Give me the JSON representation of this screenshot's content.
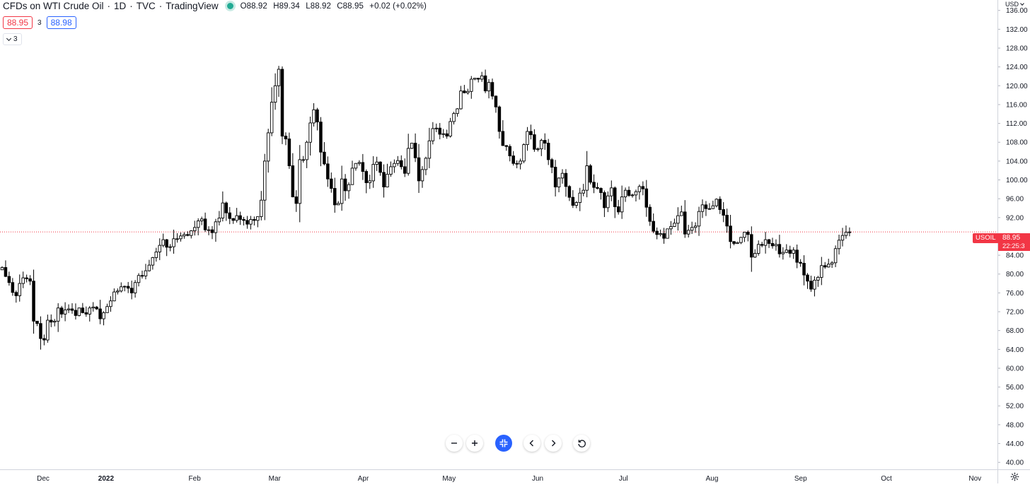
{
  "legend": {
    "symbol": "CFDs on WTI Crude Oil",
    "interval": "1D",
    "exchange": "TVC",
    "source": "TradingView",
    "separator": "·",
    "open": "O88.92",
    "high": "H89.34",
    "low": "L88.92",
    "close": "C88.95",
    "change": "+0.02 (+0.02%)"
  },
  "trade": {
    "sell": "88.95",
    "spread": "3",
    "buy": "88.98"
  },
  "indicators": {
    "count": "3"
  },
  "price_axis": {
    "currency": "USD"
  },
  "last_price": {
    "symbol": "USOIL",
    "value": "88.95",
    "countdown": "22:25:3"
  },
  "colors": {
    "up_body": "#ffffff",
    "down_body": "#000000",
    "wick": "#000000",
    "last_price": "#f23645",
    "buy": "#2962ff",
    "live_dot": "#22ab94"
  },
  "icons": {
    "zoom_out": "minus-icon",
    "zoom_in": "plus-icon",
    "reset_scale": "expand-arrows-icon",
    "scroll_left": "chevron-left-icon",
    "scroll_right": "chevron-right-icon",
    "reset_chart": "rotate-ccw-icon",
    "settings": "gear-icon"
  },
  "chart_data": {
    "type": "candlestick",
    "ylim": [
      38,
      140
    ],
    "y_ticks": [
      "136.00",
      "132.00",
      "128.00",
      "124.00",
      "120.00",
      "116.00",
      "112.00",
      "108.00",
      "104.00",
      "100.00",
      "96.00",
      "92.00",
      "88.00",
      "84.00",
      "80.00",
      "76.00",
      "72.00",
      "68.00",
      "64.00",
      "60.00",
      "56.00",
      "52.00",
      "48.00",
      "44.00",
      "40.00"
    ],
    "x_ticks": [
      "Dec",
      "2022",
      "Feb",
      "Mar",
      "Apr",
      "May",
      "Jun",
      "Jul",
      "Aug",
      "Sep",
      "Oct",
      "Nov"
    ],
    "x_tick_days": [
      22,
      44,
      75,
      103,
      134,
      164,
      195,
      225,
      256,
      287,
      317,
      348
    ],
    "x_range_days": [
      10,
      352
    ],
    "grid": false,
    "last_price_line": 88.95,
    "closes": [
      81.4,
      79.5,
      78.2,
      76.1,
      75.4,
      78.0,
      79.2,
      79.0,
      78.5,
      70.0,
      69.5,
      66.3,
      66.0,
      70.2,
      69.8,
      70.0,
      72.8,
      71.5,
      72.4,
      72.6,
      72.3,
      71.2,
      72.8,
      71.8,
      71.5,
      72.8,
      73.0,
      72.6,
      70.5,
      71.8,
      73.1,
      74.3,
      76.2,
      76.4,
      77.3,
      77.4,
      77.0,
      76.0,
      78.2,
      79.7,
      79.6,
      80.7,
      81.9,
      83.5,
      84.7,
      86.1,
      87.3,
      85.7,
      85.8,
      87.5,
      87.5,
      88.1,
      88.4,
      88.2,
      89.2,
      89.9,
      91.3,
      91.7,
      89.4,
      89.4,
      88.8,
      91.1,
      91.9,
      95.1,
      93.0,
      91.8,
      91.4,
      92.4,
      91.6,
      91.4,
      90.6,
      91.6,
      91.4,
      92.2,
      95.7,
      104.0,
      110.0,
      116.5,
      120.0,
      123.5,
      109.3,
      108.7,
      103.0,
      96.4,
      95.0,
      104.3,
      104.3,
      108.0,
      112.1,
      114.9,
      112.3,
      105.9,
      103.4,
      100.2,
      98.2,
      94.7,
      95.0,
      100.2,
      97.7,
      99.0,
      102.5,
      103.5,
      103.7,
      101.8,
      99.4,
      99.8,
      103.3,
      103.8,
      101.6,
      98.5,
      101.2,
      102.8,
      103.5,
      104.1,
      102.8,
      101.4,
      106.7,
      107.8,
      104.7,
      99.8,
      102.2,
      104.6,
      108.3,
      110.9,
      111.0,
      109.7,
      109.8,
      109.3,
      112.4,
      114.1,
      115.1,
      118.9,
      118.5,
      118.8,
      121.4,
      121.6,
      121.4,
      122.1,
      118.9,
      120.7,
      117.8,
      115.5,
      110.3,
      107.3,
      107.1,
      105.1,
      103.5,
      103.4,
      104.0,
      107.5,
      110.3,
      109.6,
      106.5,
      106.6,
      108.4,
      107.8,
      104.3,
      102.7,
      98.5,
      100.4,
      101.4,
      98.6,
      96.3,
      94.6,
      95.2,
      97.2,
      97.8,
      103.0,
      99.5,
      98.4,
      98.2,
      97.3,
      94.1,
      96.6,
      98.3,
      94.3,
      93.2,
      96.4,
      97.8,
      96.7,
      96.8,
      97.5,
      98.6,
      98.1,
      94.2,
      91.2,
      89.1,
      88.4,
      88.6,
      87.6,
      89.6,
      90.1,
      90.8,
      92.4,
      93.2,
      88.5,
      89.3,
      89.9,
      90.2,
      93.3,
      94.7,
      93.9,
      93.9,
      94.5,
      95.9,
      93.7,
      92.5,
      90.2,
      86.9,
      86.5,
      86.7,
      87.8,
      88.9,
      88.4,
      83.6,
      84.4,
      86.3,
      86.1,
      87.3,
      86.5,
      86.0,
      86.3,
      84.3,
      84.6,
      85.1,
      84.4,
      85.1,
      82.5,
      82.3,
      79.8,
      78.5,
      76.8,
      78.7,
      79.3,
      81.8,
      81.5,
      82.1,
      82.4,
      85.4,
      87.2,
      88.2,
      88.9,
      88.95
    ]
  }
}
